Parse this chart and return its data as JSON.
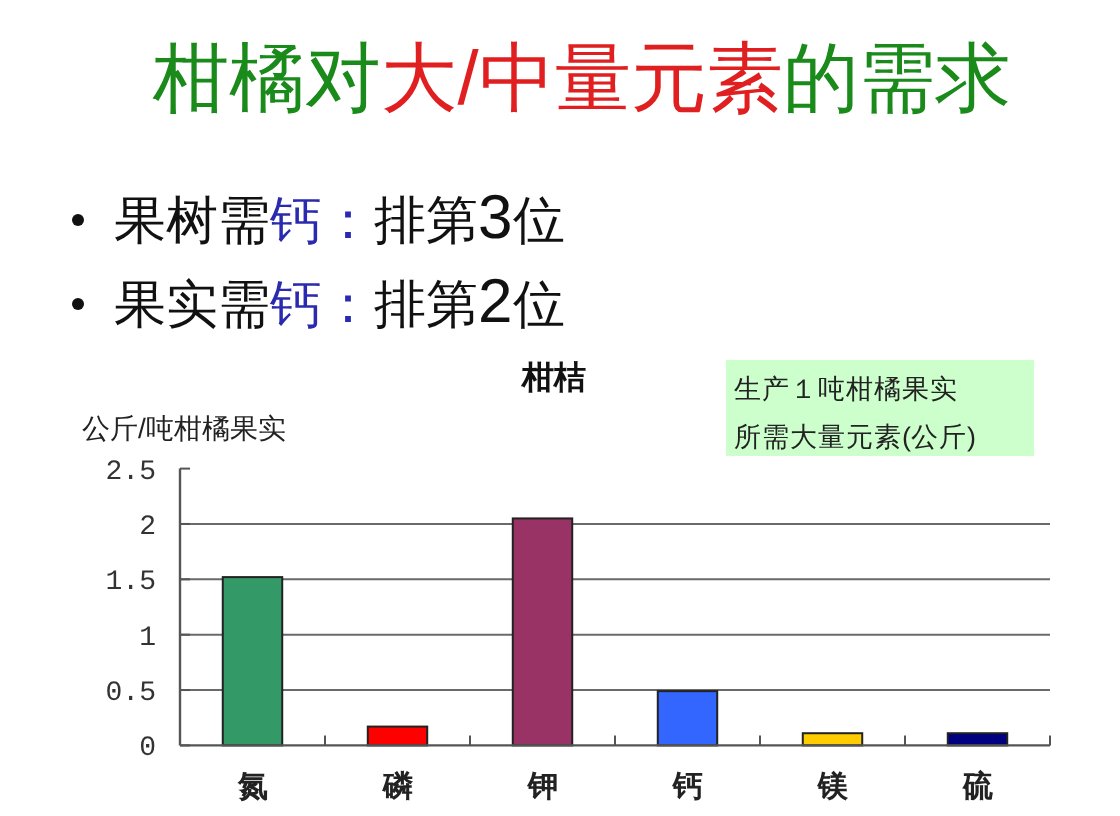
{
  "chart_data": {
    "type": "bar",
    "title": "柑橘对大/中量元素的需求",
    "subtitle": "柑桔",
    "ylabel": "公斤/吨柑橘果实",
    "annotations": [
      "果树需钙：排第3位",
      "果实需钙：排第2位",
      "生产１吨柑橘果实",
      "所需大量元素(公斤)"
    ],
    "categories": [
      "氮",
      "磷",
      "钾",
      "钙",
      "镁",
      "硫"
    ],
    "values": [
      1.52,
      0.17,
      2.05,
      0.49,
      0.11,
      0.11
    ],
    "colors": [
      "#339966",
      "#ff0000",
      "#993366",
      "#3366ff",
      "#ffcc00",
      "#000080"
    ],
    "ylim": [
      0,
      2.5
    ],
    "yticks": [
      0,
      0.5,
      1,
      1.5,
      2,
      2.5
    ],
    "grid": "y"
  }
}
